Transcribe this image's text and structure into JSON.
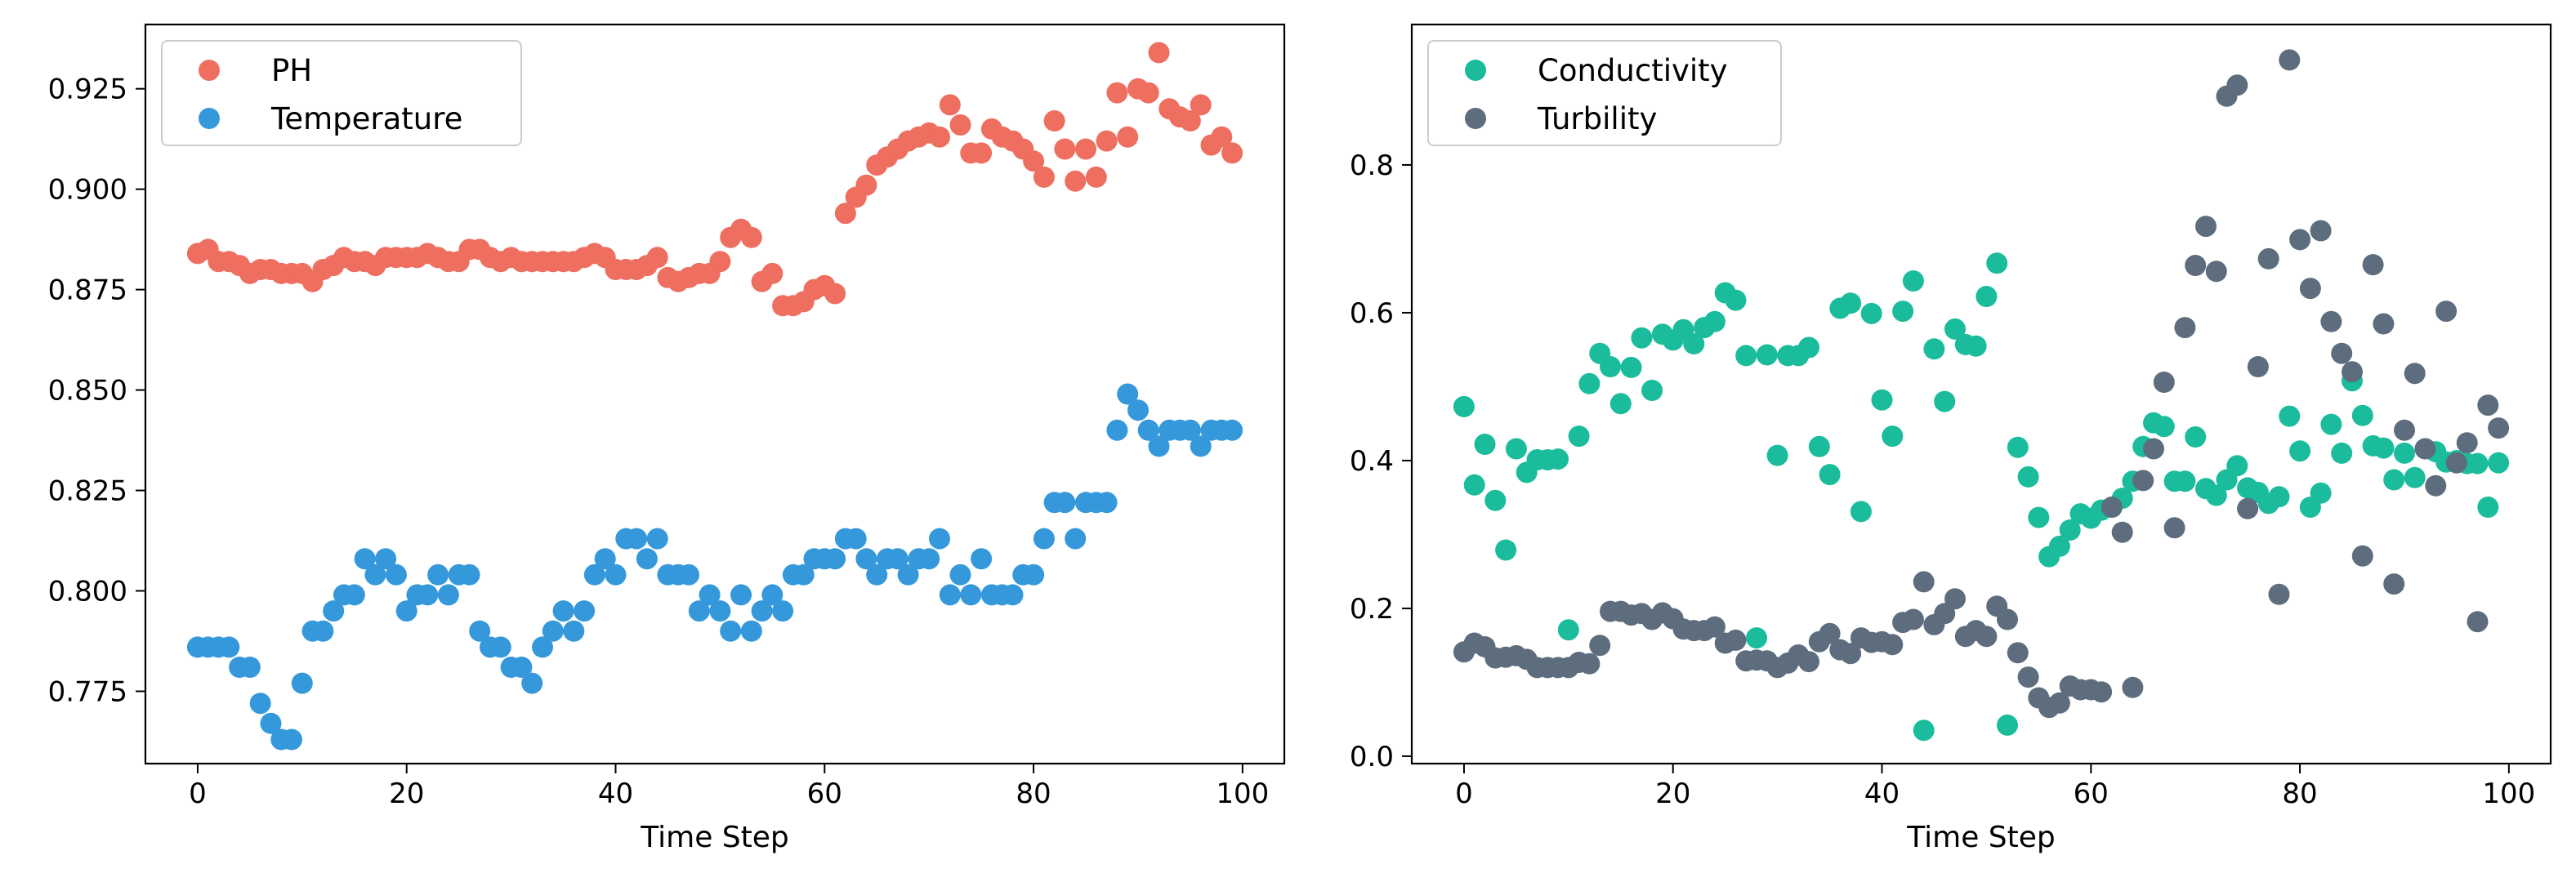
{
  "chart_data": [
    {
      "type": "scatter",
      "title": "",
      "xlabel": "Time Step",
      "ylabel": "",
      "xlim": [
        -5,
        104
      ],
      "ylim": [
        0.757,
        0.941
      ],
      "xticks": [
        0,
        20,
        40,
        60,
        80,
        100
      ],
      "xtick_labels": [
        "0",
        "20",
        "40",
        "60",
        "80",
        "100"
      ],
      "yticks": [
        0.775,
        0.8,
        0.825,
        0.85,
        0.875,
        0.9,
        0.925
      ],
      "ytick_labels": [
        "0.775",
        "0.800",
        "0.825",
        "0.850",
        "0.875",
        "0.900",
        "0.925"
      ],
      "grid": false,
      "legend": "top-left",
      "x": [
        0,
        1,
        2,
        3,
        4,
        5,
        6,
        7,
        8,
        9,
        10,
        11,
        12,
        13,
        14,
        15,
        16,
        17,
        18,
        19,
        20,
        21,
        22,
        23,
        24,
        25,
        26,
        27,
        28,
        29,
        30,
        31,
        32,
        33,
        34,
        35,
        36,
        37,
        38,
        39,
        40,
        41,
        42,
        43,
        44,
        45,
        46,
        47,
        48,
        49,
        50,
        51,
        52,
        53,
        54,
        55,
        56,
        57,
        58,
        59,
        60,
        61,
        62,
        63,
        64,
        65,
        66,
        67,
        68,
        69,
        70,
        71,
        72,
        73,
        74,
        75,
        76,
        77,
        78,
        79,
        80,
        81,
        82,
        83,
        84,
        85,
        86,
        87,
        88,
        89,
        90,
        91,
        92,
        93,
        94,
        95,
        96,
        97,
        98,
        99
      ],
      "series": [
        {
          "name": "PH",
          "color": "#ee6e60",
          "values": [
            0.884,
            0.885,
            0.882,
            0.882,
            0.881,
            0.879,
            0.88,
            0.88,
            0.879,
            0.879,
            0.879,
            0.877,
            0.88,
            0.881,
            0.883,
            0.882,
            0.882,
            0.881,
            0.883,
            0.883,
            0.883,
            0.883,
            0.884,
            0.883,
            0.882,
            0.882,
            0.885,
            0.885,
            0.883,
            0.882,
            0.883,
            0.882,
            0.882,
            0.882,
            0.882,
            0.882,
            0.882,
            0.883,
            0.884,
            0.883,
            0.88,
            0.88,
            0.88,
            0.881,
            0.883,
            0.878,
            0.877,
            0.878,
            0.879,
            0.879,
            0.882,
            0.888,
            0.89,
            0.888,
            0.877,
            0.879,
            0.871,
            0.871,
            0.872,
            0.875,
            0.876,
            0.874,
            0.894,
            0.898,
            0.901,
            0.906,
            0.908,
            0.91,
            0.912,
            0.913,
            0.914,
            0.913,
            0.921,
            0.916,
            0.909,
            0.909,
            0.915,
            0.913,
            0.912,
            0.91,
            0.907,
            0.903,
            0.917,
            0.91,
            0.902,
            0.91,
            0.903,
            0.912,
            0.924,
            0.913,
            0.925,
            0.924,
            0.934,
            0.92,
            0.918,
            0.917,
            0.921,
            0.911,
            0.913,
            0.909
          ]
        },
        {
          "name": "Temperature",
          "color": "#3498db",
          "values": [
            0.786,
            0.786,
            0.786,
            0.786,
            0.781,
            0.781,
            0.772,
            0.767,
            0.763,
            0.763,
            0.777,
            0.79,
            0.79,
            0.795,
            0.799,
            0.799,
            0.808,
            0.804,
            0.808,
            0.804,
            0.795,
            0.799,
            0.799,
            0.804,
            0.799,
            0.804,
            0.804,
            0.79,
            0.786,
            0.786,
            0.781,
            0.781,
            0.777,
            0.786,
            0.79,
            0.795,
            0.79,
            0.795,
            0.804,
            0.808,
            0.804,
            0.813,
            0.813,
            0.808,
            0.813,
            0.804,
            0.804,
            0.804,
            0.795,
            0.799,
            0.795,
            0.79,
            0.799,
            0.79,
            0.795,
            0.799,
            0.795,
            0.804,
            0.804,
            0.808,
            0.808,
            0.808,
            0.813,
            0.813,
            0.808,
            0.804,
            0.808,
            0.808,
            0.804,
            0.808,
            0.808,
            0.813,
            0.799,
            0.804,
            0.799,
            0.808,
            0.799,
            0.799,
            0.799,
            0.804,
            0.804,
            0.813,
            0.822,
            0.822,
            0.813,
            0.822,
            0.822,
            0.822,
            0.84,
            0.849,
            0.845,
            0.84,
            0.836,
            0.84,
            0.84,
            0.84,
            0.836,
            0.84,
            0.84,
            0.84
          ]
        }
      ]
    },
    {
      "type": "scatter",
      "title": "",
      "xlabel": "Time Step",
      "ylabel": "",
      "xlim": [
        -5,
        104
      ],
      "ylim": [
        -0.01,
        0.99
      ],
      "xticks": [
        0,
        20,
        40,
        60,
        80,
        100
      ],
      "xtick_labels": [
        "0",
        "20",
        "40",
        "60",
        "80",
        "100"
      ],
      "yticks": [
        0.0,
        0.2,
        0.4,
        0.6,
        0.8
      ],
      "ytick_labels": [
        "0.0",
        "0.2",
        "0.4",
        "0.6",
        "0.8"
      ],
      "grid": false,
      "legend": "top-left",
      "x": [
        0,
        1,
        2,
        3,
        4,
        5,
        6,
        7,
        8,
        9,
        10,
        11,
        12,
        13,
        14,
        15,
        16,
        17,
        18,
        19,
        20,
        21,
        22,
        23,
        24,
        25,
        26,
        27,
        28,
        29,
        30,
        31,
        32,
        33,
        34,
        35,
        36,
        37,
        38,
        39,
        40,
        41,
        42,
        43,
        44,
        45,
        46,
        47,
        48,
        49,
        50,
        51,
        52,
        53,
        54,
        55,
        56,
        57,
        58,
        59,
        60,
        61,
        62,
        63,
        64,
        65,
        66,
        67,
        68,
        69,
        70,
        71,
        72,
        73,
        74,
        75,
        76,
        77,
        78,
        79,
        80,
        81,
        82,
        83,
        84,
        85,
        86,
        87,
        88,
        89,
        90,
        91,
        92,
        93,
        94,
        95,
        96,
        97,
        98,
        99
      ],
      "series": [
        {
          "name": "Conductivity",
          "color": "#1abc9c",
          "values": [
            0.473,
            0.367,
            0.422,
            0.346,
            0.279,
            0.416,
            0.384,
            0.401,
            0.401,
            0.402,
            0.171,
            0.433,
            0.504,
            0.545,
            0.527,
            0.477,
            0.526,
            0.566,
            0.495,
            0.571,
            0.563,
            0.577,
            0.558,
            0.58,
            0.588,
            0.627,
            0.617,
            0.542,
            0.16,
            0.543,
            0.407,
            0.542,
            0.542,
            0.553,
            0.419,
            0.381,
            0.606,
            0.613,
            0.331,
            0.599,
            0.482,
            0.433,
            0.602,
            0.643,
            0.035,
            0.551,
            0.48,
            0.578,
            0.557,
            0.555,
            0.622,
            0.667,
            0.042,
            0.418,
            0.378,
            0.323,
            0.27,
            0.284,
            0.306,
            0.328,
            0.322,
            0.333,
            0.337,
            0.349,
            0.372,
            0.419,
            0.451,
            0.446,
            0.372,
            0.372,
            0.432,
            0.362,
            0.353,
            0.374,
            0.393,
            0.363,
            0.357,
            0.342,
            0.351,
            0.46,
            0.413,
            0.337,
            0.356,
            0.449,
            0.41,
            0.508,
            0.461,
            0.42,
            0.417,
            0.374,
            0.41,
            0.377,
            0.416,
            0.412,
            0.398,
            0.4,
            0.396,
            0.396,
            0.337,
            0.397
          ]
        },
        {
          "name": "Turbility",
          "color": "#5d6d7e",
          "values": [
            0.141,
            0.153,
            0.148,
            0.133,
            0.134,
            0.136,
            0.131,
            0.12,
            0.12,
            0.12,
            0.12,
            0.127,
            0.125,
            0.15,
            0.196,
            0.196,
            0.191,
            0.193,
            0.185,
            0.194,
            0.186,
            0.172,
            0.17,
            0.17,
            0.175,
            0.153,
            0.157,
            0.129,
            0.13,
            0.129,
            0.12,
            0.126,
            0.137,
            0.128,
            0.155,
            0.166,
            0.144,
            0.139,
            0.16,
            0.154,
            0.155,
            0.151,
            0.181,
            0.185,
            0.236,
            0.178,
            0.193,
            0.213,
            0.162,
            0.17,
            0.162,
            0.203,
            0.185,
            0.14,
            0.107,
            0.079,
            0.066,
            0.072,
            0.095,
            0.09,
            0.09,
            0.087,
            0.337,
            0.303,
            0.093,
            0.373,
            0.416,
            0.506,
            0.309,
            0.58,
            0.664,
            0.717,
            0.656,
            0.893,
            0.908,
            0.335,
            0.527,
            0.673,
            0.219,
            0.942,
            0.699,
            0.633,
            0.711,
            0.588,
            0.545,
            0.52,
            0.271,
            0.665,
            0.585,
            0.233,
            0.441,
            0.518,
            0.416,
            0.366,
            0.602,
            0.397,
            0.424,
            0.182,
            0.475,
            0.444
          ]
        }
      ]
    }
  ]
}
